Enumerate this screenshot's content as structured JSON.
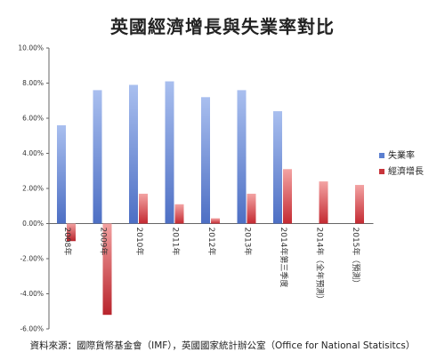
{
  "chart_data": {
    "type": "bar",
    "title": "英國經濟增長與失業率對比",
    "source": "資料來源：國際貨幣基金會（IMF），英國國家統計辦公室（Office for National Statisitcs）",
    "categories": [
      "2008年",
      "2009年",
      "2010年",
      "2011年",
      "2012年",
      "2013年",
      "2014年第三季度",
      "2014年（全年預測）",
      "2015年（預測）"
    ],
    "series": [
      {
        "name": "失業率",
        "color": "#5b7fd0",
        "values": [
          5.6,
          7.6,
          7.9,
          8.1,
          7.2,
          7.6,
          6.4,
          null,
          null
        ]
      },
      {
        "name": "經濟增長",
        "color": "#c8343b",
        "values": [
          -1.0,
          -5.2,
          1.7,
          1.1,
          0.3,
          1.7,
          3.1,
          2.4,
          2.2
        ]
      }
    ],
    "ylim": [
      -6,
      10
    ],
    "yticks": [
      "10.00%",
      "8.00%",
      "6.00%",
      "4.00%",
      "2.00%",
      "0.00%",
      "-2.00%",
      "-4.00%",
      "-6.00%"
    ],
    "grid": false,
    "legend": "right"
  }
}
